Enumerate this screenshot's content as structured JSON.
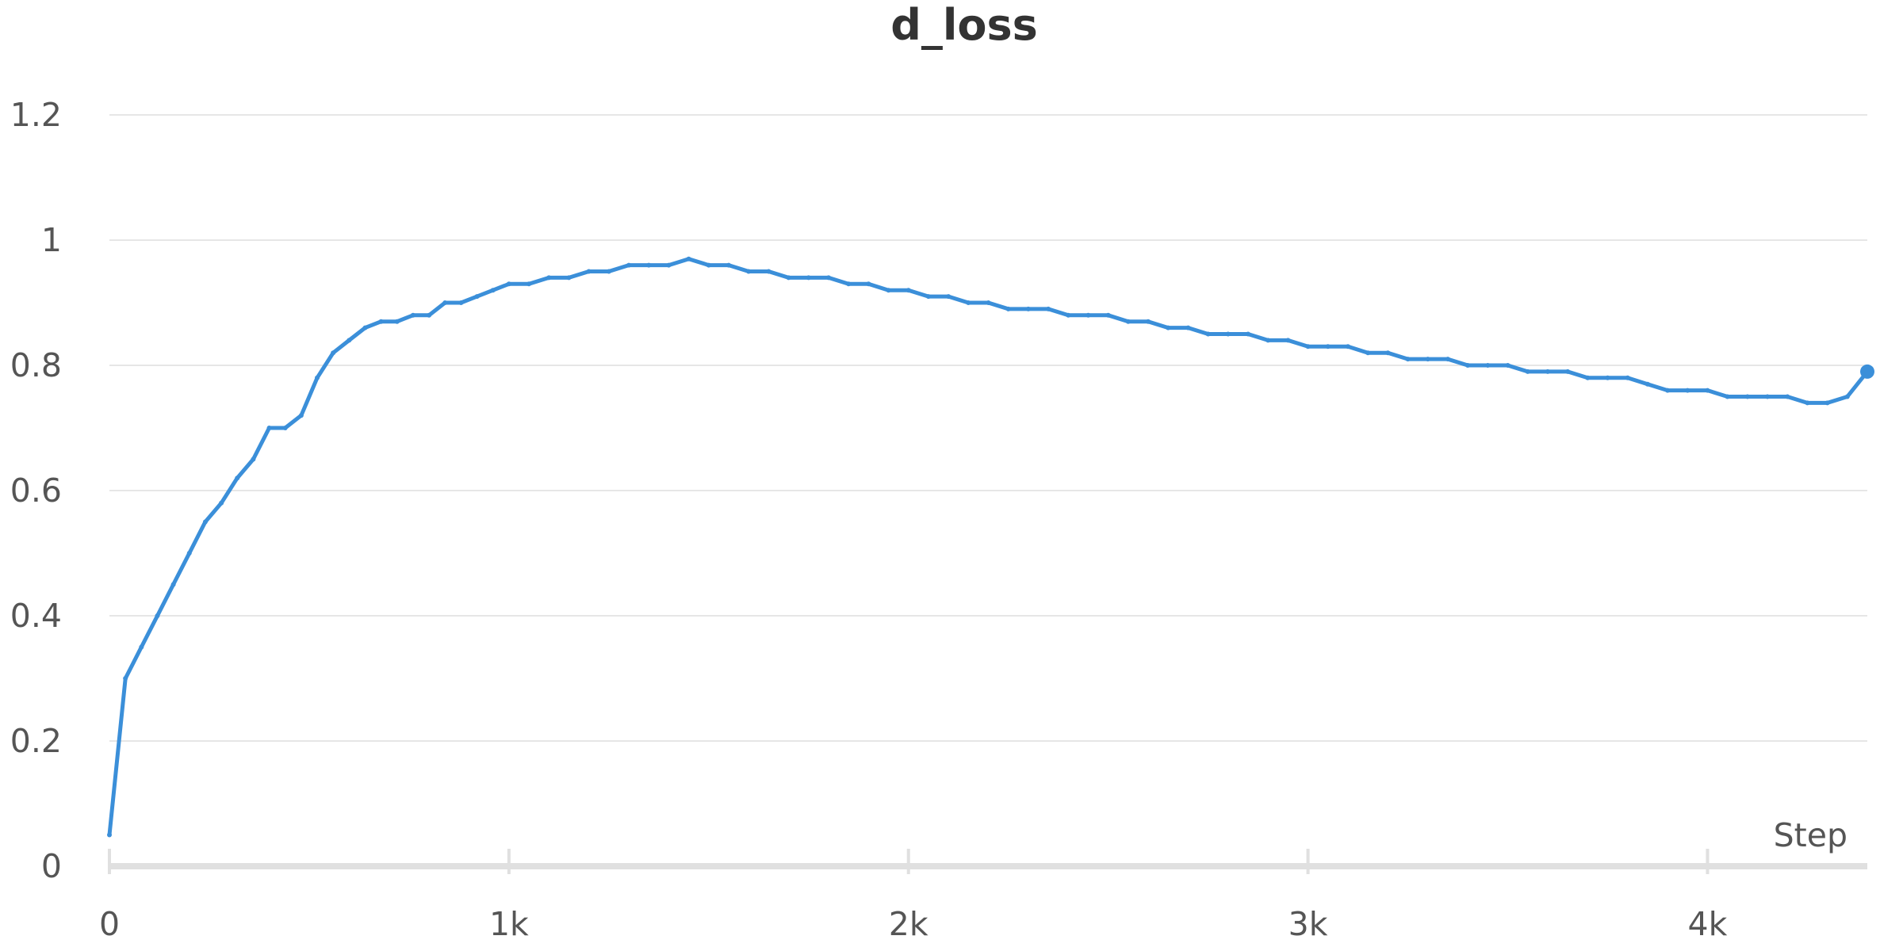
{
  "chart_data": {
    "type": "line",
    "title": "d_loss",
    "xlabel": "Step",
    "ylabel": "",
    "xlim": [
      0,
      4400
    ],
    "ylim": [
      0,
      1.2
    ],
    "x_ticks": [
      {
        "value": 0,
        "label": "0"
      },
      {
        "value": 1000,
        "label": "1k"
      },
      {
        "value": 2000,
        "label": "2k"
      },
      {
        "value": 3000,
        "label": "3k"
      },
      {
        "value": 4000,
        "label": "4k"
      }
    ],
    "y_ticks": [
      {
        "value": 0,
        "label": "0"
      },
      {
        "value": 0.2,
        "label": "0.2"
      },
      {
        "value": 0.4,
        "label": "0.4"
      },
      {
        "value": 0.6,
        "label": "0.6"
      },
      {
        "value": 0.8,
        "label": "0.8"
      },
      {
        "value": 1,
        "label": "1"
      },
      {
        "value": 1.2,
        "label": "1.2"
      }
    ],
    "grid": true,
    "colors": {
      "line": "#3b8fd9",
      "grid": "#e6e6e6",
      "axis": "#e0e0e0"
    },
    "series": [
      {
        "x": [
          0,
          40,
          80,
          120,
          160,
          200,
          240,
          280,
          320,
          360,
          400,
          440,
          480,
          520,
          560,
          600,
          640,
          680,
          720,
          760,
          800,
          840,
          880,
          920,
          960,
          1000,
          1050,
          1100,
          1150,
          1200,
          1250,
          1300,
          1350,
          1400,
          1450,
          1500,
          1550,
          1600,
          1650,
          1700,
          1750,
          1800,
          1850,
          1900,
          1950,
          2000,
          2050,
          2100,
          2150,
          2200,
          2250,
          2300,
          2350,
          2400,
          2450,
          2500,
          2550,
          2600,
          2650,
          2700,
          2750,
          2800,
          2850,
          2900,
          2950,
          3000,
          3050,
          3100,
          3150,
          3200,
          3250,
          3300,
          3350,
          3400,
          3450,
          3500,
          3550,
          3600,
          3650,
          3700,
          3750,
          3800,
          3850,
          3900,
          3950,
          4000,
          4050,
          4100,
          4150,
          4200,
          4250,
          4300,
          4350,
          4400
        ],
        "values": [
          0.05,
          0.3,
          0.35,
          0.4,
          0.45,
          0.5,
          0.55,
          0.58,
          0.62,
          0.65,
          0.7,
          0.7,
          0.72,
          0.78,
          0.82,
          0.84,
          0.86,
          0.87,
          0.87,
          0.88,
          0.88,
          0.9,
          0.9,
          0.91,
          0.92,
          0.93,
          0.93,
          0.94,
          0.94,
          0.95,
          0.95,
          0.96,
          0.96,
          0.96,
          0.97,
          0.96,
          0.96,
          0.95,
          0.95,
          0.94,
          0.94,
          0.94,
          0.93,
          0.93,
          0.92,
          0.92,
          0.91,
          0.91,
          0.9,
          0.9,
          0.89,
          0.89,
          0.89,
          0.88,
          0.88,
          0.88,
          0.87,
          0.87,
          0.86,
          0.86,
          0.85,
          0.85,
          0.85,
          0.84,
          0.84,
          0.83,
          0.83,
          0.83,
          0.82,
          0.82,
          0.81,
          0.81,
          0.81,
          0.8,
          0.8,
          0.8,
          0.79,
          0.79,
          0.79,
          0.78,
          0.78,
          0.78,
          0.77,
          0.76,
          0.76,
          0.76,
          0.75,
          0.75,
          0.75,
          0.75,
          0.74,
          0.74,
          0.75,
          0.79
        ]
      }
    ]
  }
}
